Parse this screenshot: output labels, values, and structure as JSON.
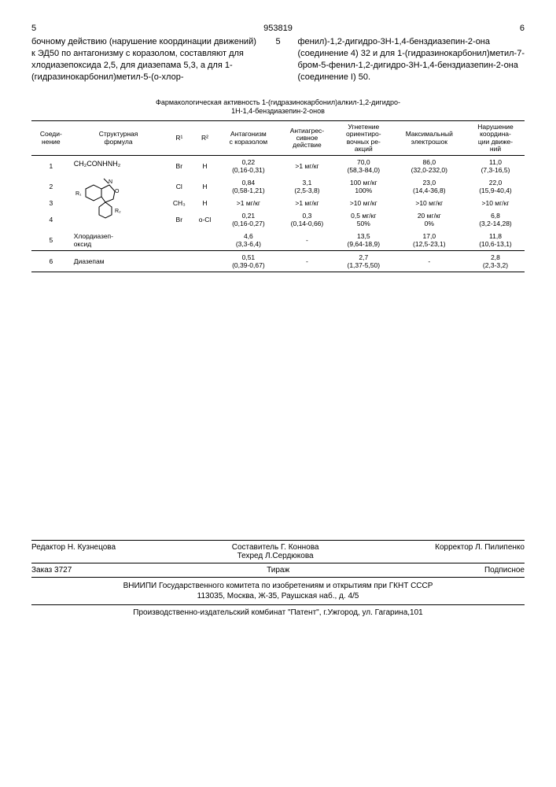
{
  "header": {
    "left_num": "5",
    "doc_number": "953819",
    "right_num": "6"
  },
  "body": {
    "left_text": "бочному действию (нарушение координации движений) к ЭД50 по антагонизму с коразолом, составляют для хлодиазепоксида 2,5, для диазепама 5,3, а для 1-(гидразинокарбонил)метил-5-(о-хлор-",
    "right_text": "фенил)-1,2-дигидро-3Н-1,4-бенздиазепин-2-она (соединение 4) 32 и для 1-(гидразинокарбонил)метил-7-бром-5-фенил-1,2-дигидро-3Н-1,4-бенздиазепин-2-она (соединение I) 50.",
    "para_mark": "5"
  },
  "table": {
    "title_line1": "Фармакологическая активность 1-(гидразинокарбонил)алкил-1,2-дигидро-",
    "title_line2": "1Н-1,4-бенздиазепин-2-онов",
    "headers": {
      "c1": "Соеди-\nнение",
      "c2": "Структурная\nформула",
      "c3": "R¹",
      "c4": "R²",
      "c5": "Антагонизм\nс коразолом",
      "c6": "Антиагрес-\nсивное\nдействие",
      "c7": "Угнетение\nориентиро-\nвочных ре-\nакций",
      "c8": "Максимальный\nэлектрошок",
      "c9": "Нарушение\nкоордина-\nции движе-\nний"
    },
    "rows": [
      {
        "n": "1",
        "r1": "Br",
        "r2": "H",
        "a": "0,22\n(0,16-0,31)",
        "b": ">1 мг/кг",
        "c": "70,0\n(58,3-84,0)",
        "d": "86,0\n(32,0-232,0)",
        "e": "11,0\n(7,3-16,5)"
      },
      {
        "n": "2",
        "r1": "Cl",
        "r2": "H",
        "a": "0,84\n(0,58-1,21)",
        "b": "3,1\n(2,5-3,8)",
        "c": "100 мг/кг\n100%",
        "d": "23,0\n(14,4-36,8)",
        "e": "22,0\n(15,9-40,4)"
      },
      {
        "n": "3",
        "r1": "CH₃",
        "r2": "H",
        "a": ">1 мг/кг",
        "b": ">1 мг/кг",
        "c": ">10 мг/кг",
        "d": ">10 мг/кг",
        "e": ">10 мг/кг"
      },
      {
        "n": "4",
        "r1": "Br",
        "r2": "о-Cl",
        "a": "0,21\n(0,16-0,27)",
        "b": "0,3\n(0,14-0,66)",
        "c": "0,5 мг/кг\n50%",
        "d": "20 мг/кг\n0%",
        "e": "6,8\n(3,2-14,28)"
      },
      {
        "n": "5",
        "formula": "Хлордиазеп-\nоксид",
        "a": "4,6\n(3,3-6,4)",
        "b": "-",
        "c": "13,5\n(9,64-18,9)",
        "d": "17,0\n(12,5-23,1)",
        "e": "11,8\n(10,6-13,1)"
      },
      {
        "n": "6",
        "formula": "Диазепам",
        "a": "0,51\n(0,39-0,67)",
        "b": "-",
        "c": "2,7\n(1,37-5,50)",
        "d": "-",
        "e": "2,8\n(2,3-3,2)"
      }
    ],
    "formula_label": "CH₂CONHNH₂"
  },
  "footer": {
    "editor_label": "Редактор",
    "editor": "Н. Кузнецова",
    "composer_label": "Составитель",
    "composer": "Г. Коннова",
    "techred_label": "Техред",
    "techred": "Л.Сердюкова",
    "corrector_label": "Корректор",
    "corrector": "Л. Пилипенко",
    "order": "Заказ 3727",
    "tirazh": "Тираж",
    "podpisnoe": "Подписное",
    "org1": "ВНИИПИ Государственного комитета по изобретениям и открытиям при ГКНТ СССР",
    "org2": "113035, Москва, Ж-35, Раушская наб., д. 4/5",
    "printer": "Производственно-издательский комбинат \"Патент\", г.Ужгород, ул. Гагарина,101"
  }
}
